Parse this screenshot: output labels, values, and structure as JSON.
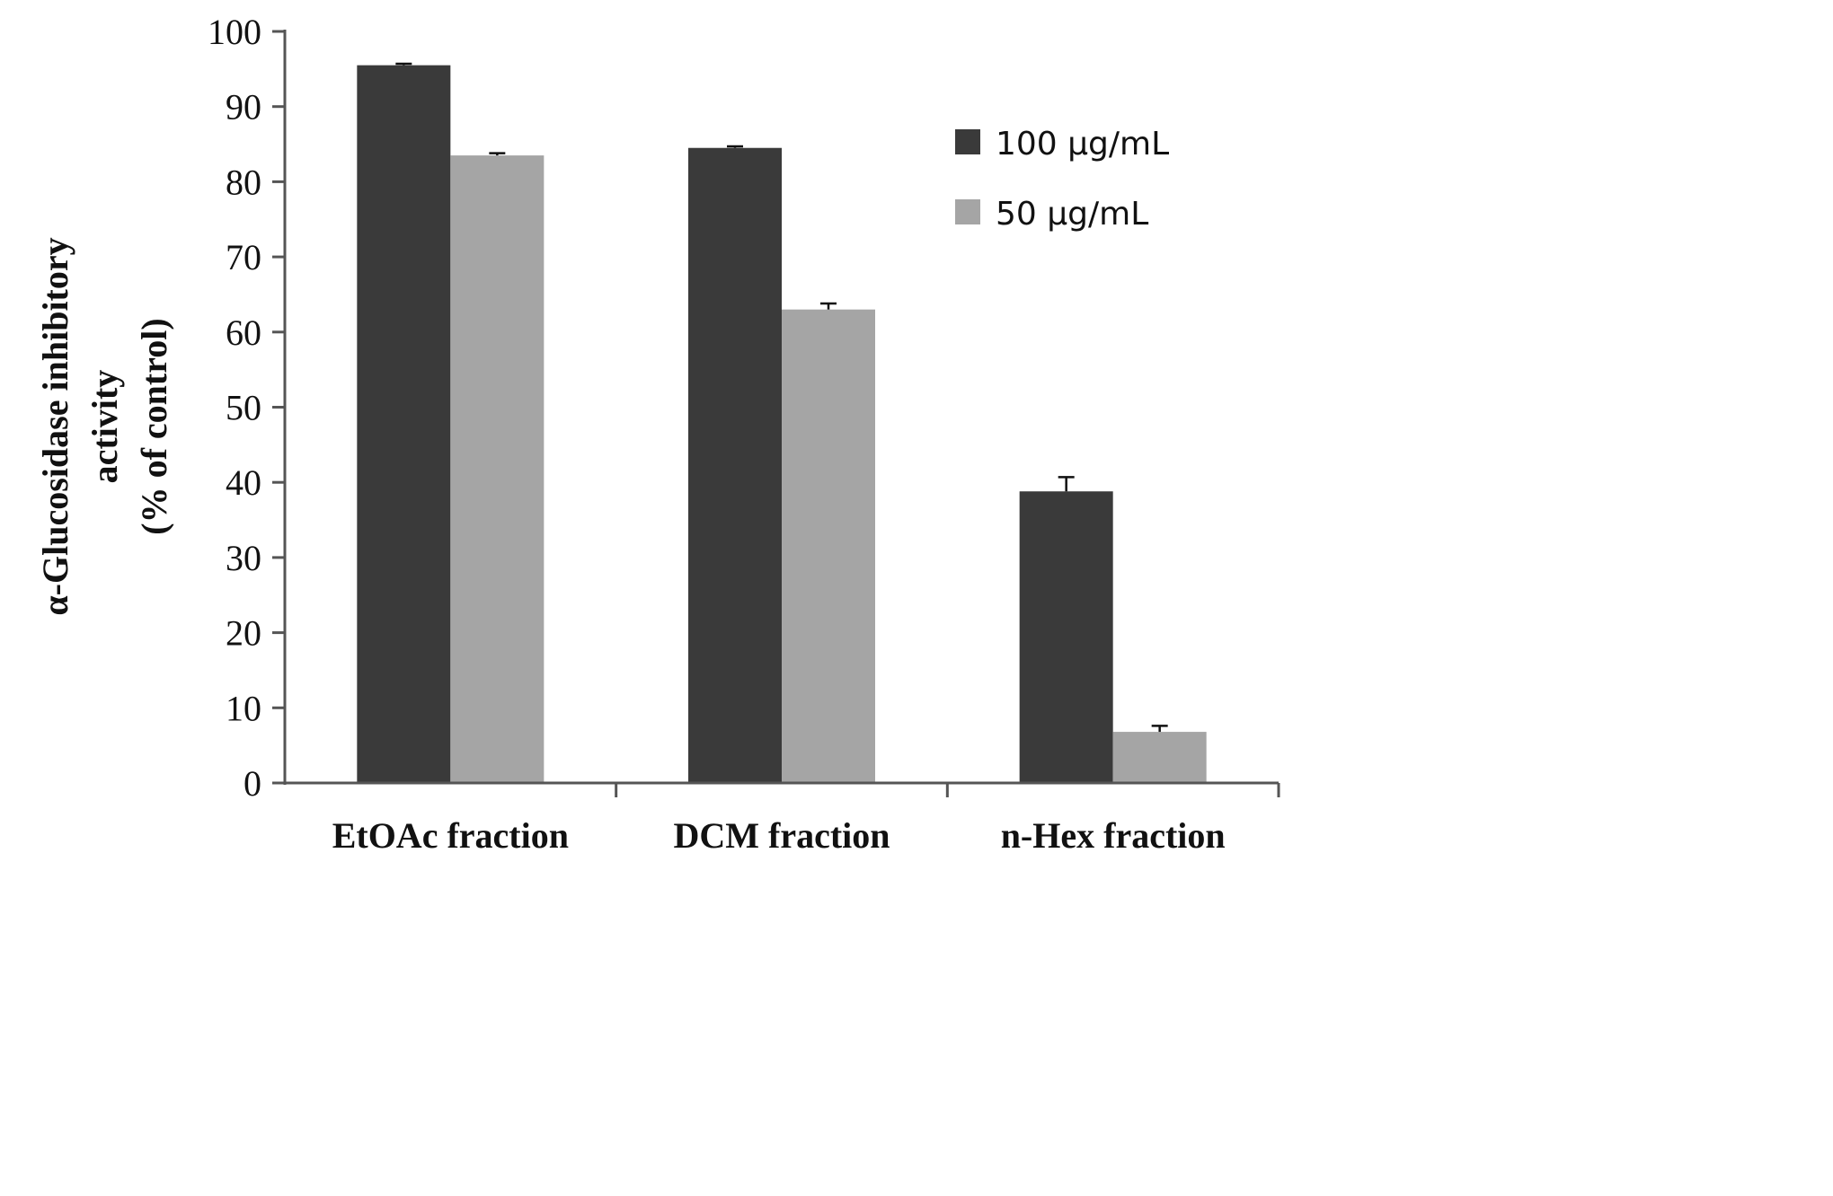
{
  "chart_data": {
    "type": "bar",
    "categories": [
      "EtOAc fraction",
      "DCM fraction",
      "n-Hex fraction"
    ],
    "series": [
      {
        "name": "100 µg/mL",
        "values": [
          95.5,
          84.5,
          38.8
        ],
        "errors": [
          0.2,
          0.2,
          1.9
        ],
        "color": "#3a3a3a"
      },
      {
        "name": "50 µg/mL",
        "values": [
          83.5,
          63.0,
          6.8
        ],
        "errors": [
          0.3,
          0.8,
          0.8
        ],
        "color": "#a5a5a5"
      }
    ],
    "ylabel_lines": [
      "α-Glucosidase inhibitory",
      "activity",
      "(% of control)"
    ],
    "ylim": [
      0,
      100
    ],
    "yticks": [
      0,
      10,
      20,
      30,
      40,
      50,
      60,
      70,
      80,
      90,
      100
    ],
    "grid": false,
    "legend_position": "top-right"
  }
}
